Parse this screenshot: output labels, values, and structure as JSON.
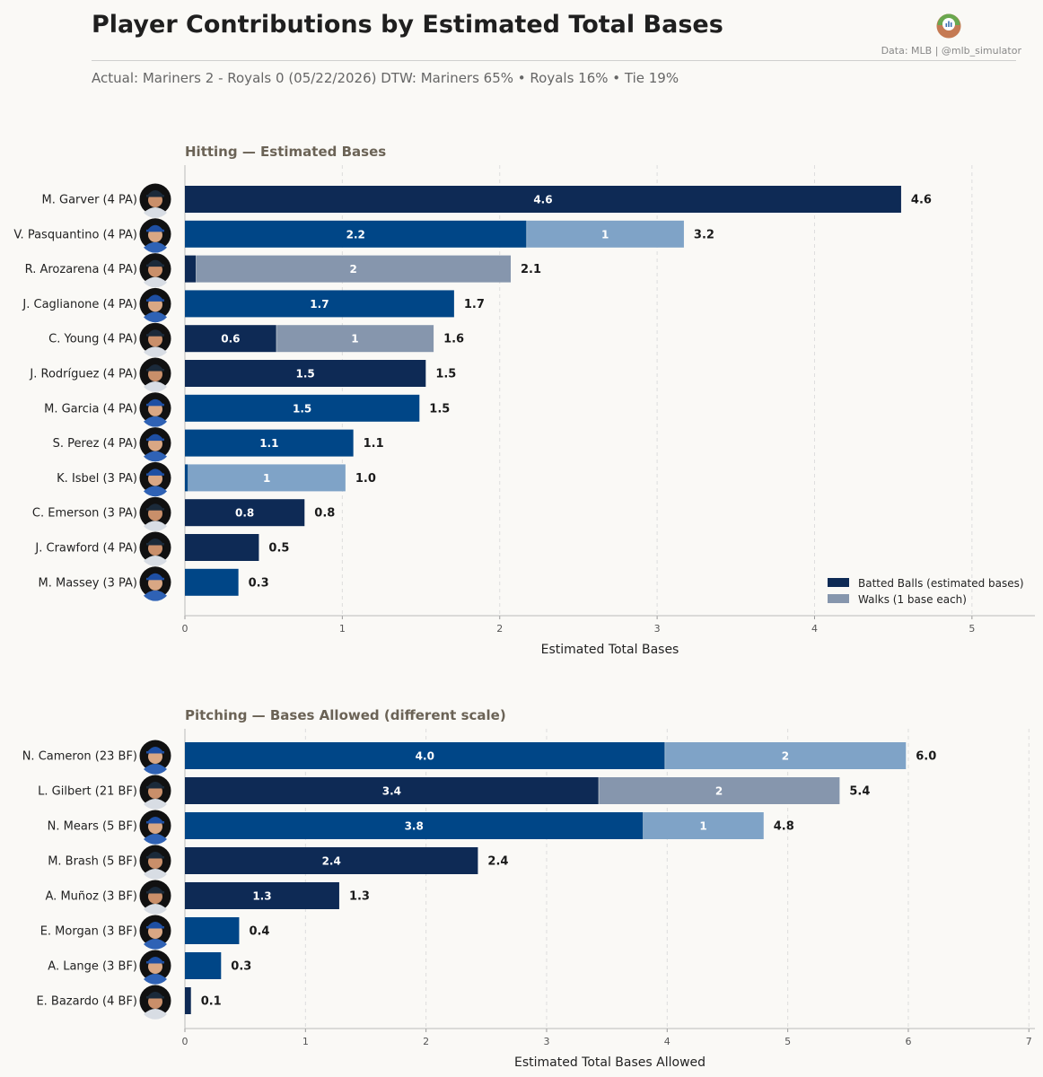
{
  "header": {
    "title": "Player Contributions by Estimated Total Bases",
    "subtitle": "Actual: Mariners 2 - Royals 0   (05/22/2026)    DTW: Mariners 65% • Royals 16% • Tie 19%",
    "credit": "Data: MLB  |  @mlb_simulator"
  },
  "colors": {
    "mariners_batted": "#0e2a55",
    "royals_batted": "#004687",
    "mariners_walk": "#8696ad",
    "royals_walk": "#7fa3c7",
    "background": "#faf9f6"
  },
  "chart_data": [
    {
      "type": "bar",
      "orientation": "horizontal",
      "stacked": true,
      "title": "Hitting  —  Estimated Bases",
      "xlabel": "Estimated Total Bases",
      "xlim": [
        0,
        5.4
      ],
      "xticks": [
        0,
        1,
        2,
        3,
        4,
        5
      ],
      "grid": "vertical dashed",
      "legend_position": "bottom-right",
      "legend": [
        "Batted Balls (estimated bases)",
        "Walks (1 base each)"
      ],
      "rows": [
        {
          "label": "M. Garver  (4 PA)",
          "team": "mariners",
          "batted": 4.55,
          "walks": 0,
          "batted_label": "4.6",
          "walk_label": "",
          "total_label": "4.6"
        },
        {
          "label": "V. Pasquantino  (4 PA)",
          "team": "royals",
          "batted": 2.17,
          "walks": 1,
          "batted_label": "2.2",
          "walk_label": "1",
          "total_label": "3.2"
        },
        {
          "label": "R. Arozarena  (4 PA)",
          "team": "mariners",
          "batted": 0.07,
          "walks": 2,
          "batted_label": "",
          "walk_label": "2",
          "total_label": "2.1"
        },
        {
          "label": "J. Caglianone  (4 PA)",
          "team": "royals",
          "batted": 1.71,
          "walks": 0,
          "batted_label": "1.7",
          "walk_label": "",
          "total_label": "1.7"
        },
        {
          "label": "C. Young  (4 PA)",
          "team": "mariners",
          "batted": 0.58,
          "walks": 1,
          "batted_label": "0.6",
          "walk_label": "1",
          "total_label": "1.6"
        },
        {
          "label": "J. Rodríguez  (4 PA)",
          "team": "mariners",
          "batted": 1.53,
          "walks": 0,
          "batted_label": "1.5",
          "walk_label": "",
          "total_label": "1.5"
        },
        {
          "label": "M. Garcia  (4 PA)",
          "team": "royals",
          "batted": 1.49,
          "walks": 0,
          "batted_label": "1.5",
          "walk_label": "",
          "total_label": "1.5"
        },
        {
          "label": "S. Perez  (4 PA)",
          "team": "royals",
          "batted": 1.07,
          "walks": 0,
          "batted_label": "1.1",
          "walk_label": "",
          "total_label": "1.1"
        },
        {
          "label": "K. Isbel  (3 PA)",
          "team": "royals",
          "batted": 0.02,
          "walks": 1,
          "batted_label": "",
          "walk_label": "1",
          "total_label": "1.0"
        },
        {
          "label": "C. Emerson  (3 PA)",
          "team": "mariners",
          "batted": 0.76,
          "walks": 0,
          "batted_label": "0.8",
          "walk_label": "",
          "total_label": "0.8"
        },
        {
          "label": "J. Crawford  (4 PA)",
          "team": "mariners",
          "batted": 0.47,
          "walks": 0,
          "batted_label": "",
          "walk_label": "",
          "total_label": "0.5"
        },
        {
          "label": "M. Massey  (3 PA)",
          "team": "royals",
          "batted": 0.34,
          "walks": 0,
          "batted_label": "",
          "walk_label": "",
          "total_label": "0.3"
        }
      ]
    },
    {
      "type": "bar",
      "orientation": "horizontal",
      "stacked": true,
      "title": "Pitching  —  Bases Allowed  (different scale)",
      "xlabel": "Estimated Total Bases Allowed",
      "xlim": [
        0,
        7.05
      ],
      "xticks": [
        0,
        1,
        2,
        3,
        4,
        5,
        6,
        7
      ],
      "grid": "vertical dashed",
      "rows": [
        {
          "label": "N. Cameron  (23 BF)",
          "team": "royals",
          "batted": 3.98,
          "walks": 2,
          "batted_label": "4.0",
          "walk_label": "2",
          "total_label": "6.0"
        },
        {
          "label": "L. Gilbert  (21 BF)",
          "team": "mariners",
          "batted": 3.43,
          "walks": 2,
          "batted_label": "3.4",
          "walk_label": "2",
          "total_label": "5.4"
        },
        {
          "label": "N. Mears  (5 BF)",
          "team": "royals",
          "batted": 3.8,
          "walks": 1,
          "batted_label": "3.8",
          "walk_label": "1",
          "total_label": "4.8"
        },
        {
          "label": "M. Brash  (5 BF)",
          "team": "mariners",
          "batted": 2.43,
          "walks": 0,
          "batted_label": "2.4",
          "walk_label": "",
          "total_label": "2.4"
        },
        {
          "label": "A. Muñoz  (3 BF)",
          "team": "mariners",
          "batted": 1.28,
          "walks": 0,
          "batted_label": "1.3",
          "walk_label": "",
          "total_label": "1.3"
        },
        {
          "label": "E. Morgan  (3 BF)",
          "team": "royals",
          "batted": 0.45,
          "walks": 0,
          "batted_label": "",
          "walk_label": "",
          "total_label": "0.4"
        },
        {
          "label": "A. Lange  (3 BF)",
          "team": "royals",
          "batted": 0.3,
          "walks": 0,
          "batted_label": "",
          "walk_label": "",
          "total_label": "0.3"
        },
        {
          "label": "E. Bazardo  (4 BF)",
          "team": "mariners",
          "batted": 0.05,
          "walks": 0,
          "batted_label": "",
          "walk_label": "",
          "total_label": "0.1"
        }
      ]
    }
  ]
}
